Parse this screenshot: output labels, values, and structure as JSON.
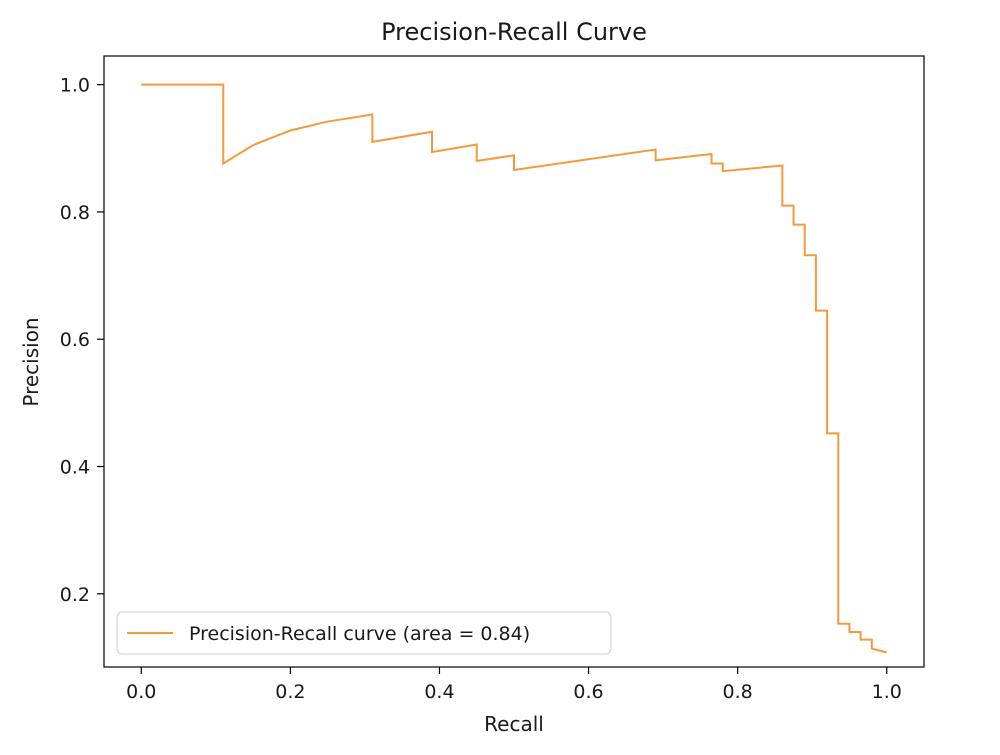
{
  "chart_data": {
    "type": "line",
    "title": "Precision-Recall Curve",
    "xlabel": "Recall",
    "ylabel": "Precision",
    "xlim": [
      -0.05,
      1.05
    ],
    "ylim": [
      0.085,
      1.045
    ],
    "xticks": [
      0.0,
      0.2,
      0.4,
      0.6,
      0.8,
      1.0
    ],
    "xtick_labels": [
      "0.0",
      "0.2",
      "0.4",
      "0.6",
      "0.8",
      "1.0"
    ],
    "yticks": [
      0.2,
      0.4,
      0.6,
      0.8,
      1.0
    ],
    "ytick_labels": [
      "0.2",
      "0.4",
      "0.6",
      "0.8",
      "1.0"
    ],
    "grid": false,
    "legend_position": "lower-left",
    "series": [
      {
        "name": "Precision-Recall curve (area = 0.84)",
        "color": "#f39b3c",
        "x": [
          0.0,
          0.11,
          0.11,
          0.15,
          0.2,
          0.25,
          0.31,
          0.31,
          0.39,
          0.39,
          0.45,
          0.45,
          0.5,
          0.5,
          0.69,
          0.69,
          0.765,
          0.765,
          0.78,
          0.78,
          0.86,
          0.86,
          0.875,
          0.875,
          0.89,
          0.89,
          0.905,
          0.905,
          0.92,
          0.92,
          0.935,
          0.935,
          0.95,
          0.95,
          0.965,
          0.965,
          0.98,
          0.98,
          1.0
        ],
        "y": [
          1.0,
          1.0,
          0.876,
          0.905,
          0.928,
          0.942,
          0.953,
          0.91,
          0.926,
          0.894,
          0.906,
          0.88,
          0.889,
          0.866,
          0.898,
          0.881,
          0.891,
          0.876,
          0.876,
          0.864,
          0.873,
          0.81,
          0.81,
          0.78,
          0.78,
          0.732,
          0.732,
          0.645,
          0.645,
          0.452,
          0.452,
          0.153,
          0.153,
          0.14,
          0.14,
          0.128,
          0.128,
          0.114,
          0.108
        ]
      }
    ]
  }
}
